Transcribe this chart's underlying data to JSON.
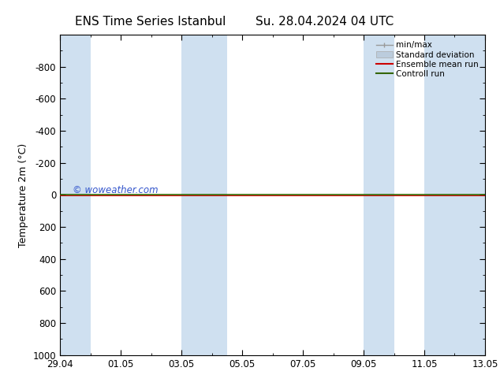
{
  "title_left": "ENS Time Series Istanbul",
  "title_right": "Su. 28.04.2024 04 UTC",
  "ylabel": "Temperature 2m (°C)",
  "ylim_top": -1000,
  "ylim_bottom": 1000,
  "yticks": [
    -800,
    -600,
    -400,
    -200,
    0,
    200,
    400,
    600,
    800,
    1000
  ],
  "xtick_labels": [
    "29.04",
    "01.05",
    "03.05",
    "05.05",
    "07.05",
    "09.05",
    "11.05",
    "13.05"
  ],
  "xtick_positions": [
    0,
    2,
    4,
    6,
    8,
    10,
    12,
    14
  ],
  "blue_bands": [
    [
      0,
      1
    ],
    [
      4,
      5.5
    ],
    [
      10,
      11
    ],
    [
      12,
      14
    ]
  ],
  "band_color": "#cfe0f0",
  "bg_color": "#ffffff",
  "green_line_color": "#336600",
  "red_line_color": "#cc0000",
  "watermark": "© woweather.com",
  "watermark_color": "#3355cc",
  "legend_items": [
    "min/max",
    "Standard deviation",
    "Ensemble mean run",
    "Controll run"
  ],
  "legend_line_colors": [
    "#999999",
    "#bbccdd",
    "#cc0000",
    "#336600"
  ],
  "title_fontsize": 11,
  "axis_fontsize": 9,
  "tick_fontsize": 8.5,
  "num_days": 14
}
